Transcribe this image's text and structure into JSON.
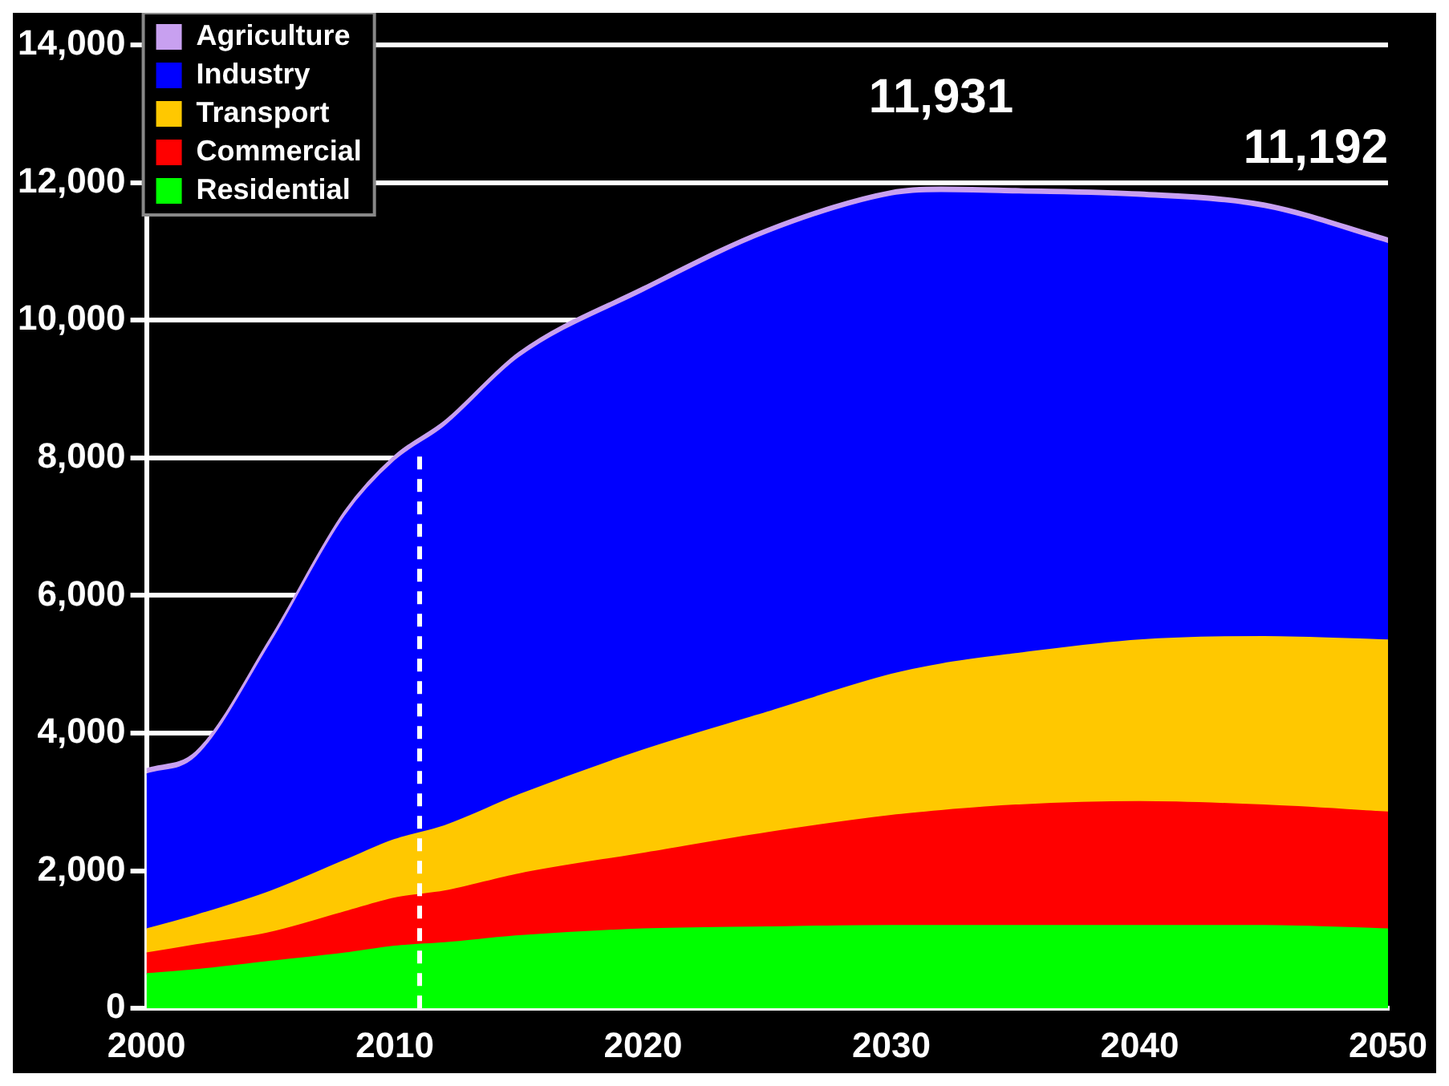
{
  "chart_data": {
    "type": "area",
    "stacked": true,
    "x": [
      2000,
      2002,
      2005,
      2008,
      2010,
      2012,
      2015,
      2020,
      2025,
      2030,
      2032,
      2035,
      2040,
      2045,
      2050
    ],
    "series": [
      {
        "name": "Residential",
        "color": "#00ff00",
        "values": [
          500,
          560,
          680,
          800,
          900,
          950,
          1050,
          1150,
          1180,
          1200,
          1200,
          1200,
          1200,
          1200,
          1150
        ]
      },
      {
        "name": "Commercial",
        "color": "#ff0000",
        "values": [
          300,
          360,
          420,
          600,
          700,
          750,
          900,
          1100,
          1370,
          1600,
          1670,
          1750,
          1800,
          1750,
          1700
        ]
      },
      {
        "name": "Transport",
        "color": "#ffc800",
        "values": [
          350,
          430,
          600,
          750,
          850,
          950,
          1150,
          1500,
          1750,
          2050,
          2130,
          2200,
          2350,
          2450,
          2500
        ]
      },
      {
        "name": "Industry",
        "color": "#0000ff",
        "values": [
          2250,
          2300,
          3600,
          5000,
          5500,
          5800,
          6350,
          6650,
          6950,
          6950,
          6850,
          6680,
          6430,
          6220,
          5760
        ]
      },
      {
        "name": "Agriculture",
        "color": "#c8a0f0",
        "values": [
          80,
          80,
          80,
          80,
          80,
          80,
          80,
          80,
          80,
          80,
          81,
          80,
          80,
          80,
          82
        ]
      }
    ],
    "xlim": [
      2000,
      2050
    ],
    "xticks": [
      2000,
      2010,
      2020,
      2030,
      2040,
      2050
    ],
    "ylim": [
      0,
      14000
    ],
    "yticks": [
      {
        "value": 0,
        "label": "0"
      },
      {
        "value": 2000,
        "label": "2,000"
      },
      {
        "value": 4000,
        "label": "4,000"
      },
      {
        "value": 6000,
        "label": "6,000"
      },
      {
        "value": 8000,
        "label": "8,000"
      },
      {
        "value": 10000,
        "label": "10,000"
      },
      {
        "value": 12000,
        "label": "12,000"
      },
      {
        "value": 14000,
        "label": "14,000"
      }
    ],
    "grid": "y",
    "legend": "top left",
    "ref_lines": [
      {
        "axis": "x",
        "value": 2011,
        "color": "#ffffff",
        "line_style": "dashed"
      }
    ],
    "annotations": [
      {
        "text": "11,931",
        "x": 2032,
        "y": 11931
      },
      {
        "text": "11,192",
        "x": 2050,
        "y": 11192
      }
    ]
  }
}
